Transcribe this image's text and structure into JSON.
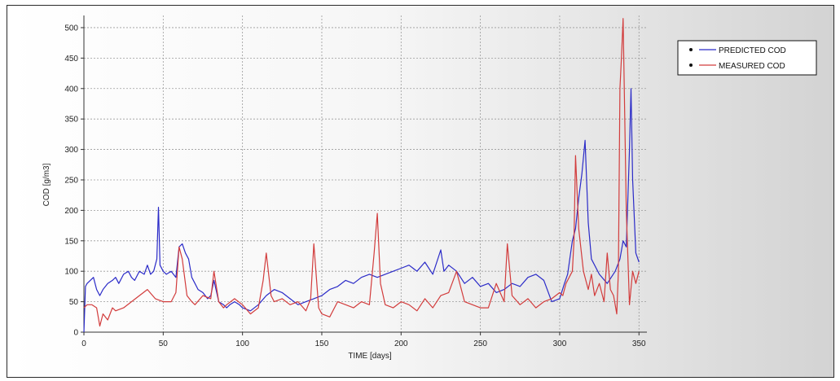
{
  "chart_data": {
    "type": "line",
    "xlabel": "TIME [days]",
    "ylabel": "COD [g/m3]",
    "xlim": [
      0,
      355
    ],
    "ylim": [
      0,
      520
    ],
    "xticks": [
      0,
      50,
      100,
      150,
      200,
      250,
      300,
      350
    ],
    "yticks": [
      0,
      50,
      100,
      150,
      200,
      250,
      300,
      350,
      400,
      450,
      500
    ],
    "grid": true,
    "legend_placement": "right",
    "series": [
      {
        "name": "PREDICTED COD",
        "color": "#2b2bc8",
        "x": [
          0,
          1,
          2,
          4,
          6,
          8,
          10,
          12,
          15,
          18,
          20,
          22,
          25,
          28,
          30,
          32,
          35,
          38,
          40,
          42,
          44,
          46,
          47,
          48,
          50,
          52,
          55,
          58,
          60,
          62,
          64,
          66,
          68,
          70,
          72,
          75,
          78,
          80,
          82,
          85,
          88,
          90,
          92,
          95,
          98,
          100,
          105,
          110,
          115,
          120,
          125,
          130,
          135,
          140,
          145,
          150,
          155,
          160,
          165,
          170,
          175,
          180,
          185,
          190,
          195,
          200,
          205,
          210,
          215,
          220,
          225,
          227,
          230,
          235,
          240,
          245,
          250,
          255,
          260,
          265,
          270,
          275,
          280,
          285,
          290,
          295,
          300,
          303,
          305,
          308,
          310,
          312,
          314,
          316,
          318,
          320,
          325,
          330,
          335,
          338,
          340,
          342,
          344,
          345,
          346,
          348,
          350
        ],
        "y": [
          0,
          75,
          80,
          85,
          90,
          70,
          60,
          70,
          80,
          85,
          90,
          80,
          95,
          100,
          90,
          85,
          100,
          95,
          110,
          95,
          100,
          120,
          205,
          110,
          100,
          95,
          100,
          90,
          140,
          145,
          130,
          120,
          90,
          80,
          70,
          65,
          55,
          60,
          85,
          50,
          45,
          40,
          45,
          50,
          45,
          40,
          35,
          45,
          60,
          70,
          65,
          55,
          45,
          50,
          55,
          60,
          70,
          75,
          85,
          80,
          90,
          95,
          90,
          95,
          100,
          105,
          110,
          100,
          115,
          95,
          135,
          100,
          110,
          100,
          80,
          90,
          75,
          80,
          65,
          70,
          80,
          75,
          90,
          95,
          85,
          50,
          55,
          80,
          95,
          150,
          170,
          220,
          260,
          315,
          180,
          120,
          95,
          80,
          100,
          120,
          150,
          140,
          300,
          400,
          250,
          130,
          115
        ]
      },
      {
        "name": "MEASURED COD",
        "color": "#d23c3c",
        "x": [
          0,
          2,
          5,
          8,
          10,
          12,
          15,
          18,
          20,
          25,
          30,
          35,
          40,
          45,
          50,
          55,
          58,
          60,
          62,
          65,
          68,
          70,
          75,
          80,
          82,
          85,
          88,
          90,
          95,
          100,
          105,
          110,
          113,
          115,
          118,
          120,
          125,
          130,
          135,
          140,
          143,
          145,
          148,
          150,
          155,
          160,
          165,
          170,
          175,
          180,
          183,
          185,
          187,
          190,
          195,
          200,
          205,
          210,
          215,
          220,
          225,
          230,
          235,
          240,
          245,
          250,
          255,
          260,
          265,
          267,
          270,
          275,
          280,
          285,
          290,
          295,
          300,
          302,
          304,
          306,
          308,
          309,
          310,
          312,
          315,
          318,
          320,
          322,
          325,
          328,
          330,
          332,
          334,
          336,
          337,
          338,
          339,
          340,
          342,
          344,
          346,
          348,
          350
        ],
        "y": [
          40,
          45,
          45,
          40,
          10,
          30,
          20,
          40,
          35,
          40,
          50,
          60,
          70,
          55,
          50,
          50,
          65,
          140,
          120,
          60,
          50,
          45,
          60,
          55,
          100,
          50,
          40,
          45,
          55,
          45,
          30,
          40,
          85,
          130,
          60,
          50,
          55,
          45,
          50,
          35,
          55,
          145,
          40,
          30,
          25,
          50,
          45,
          40,
          50,
          45,
          130,
          195,
          80,
          45,
          40,
          50,
          45,
          35,
          55,
          40,
          60,
          65,
          100,
          50,
          45,
          40,
          40,
          80,
          50,
          145,
          60,
          45,
          55,
          40,
          50,
          55,
          65,
          60,
          80,
          90,
          100,
          150,
          290,
          170,
          100,
          70,
          95,
          60,
          80,
          50,
          130,
          70,
          60,
          30,
          100,
          400,
          455,
          515,
          200,
          45,
          100,
          80,
          100
        ]
      }
    ]
  }
}
